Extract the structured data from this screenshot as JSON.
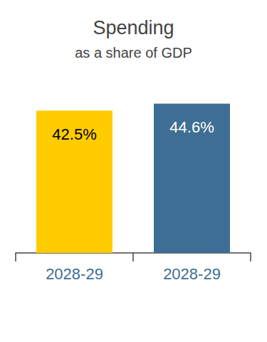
{
  "chart_data": {
    "type": "bar",
    "title": "Spending",
    "subtitle": "as a share of GDP",
    "categories": [
      "2028-29",
      "2028-29"
    ],
    "values": [
      42.5,
      44.6
    ],
    "value_labels": [
      "42.5%",
      "44.6%"
    ],
    "colors": [
      "#FFCC00",
      "#3E6E93"
    ],
    "ylim": [
      0,
      50
    ],
    "data_labels": true,
    "tick_labels": "x",
    "grid": false
  }
}
